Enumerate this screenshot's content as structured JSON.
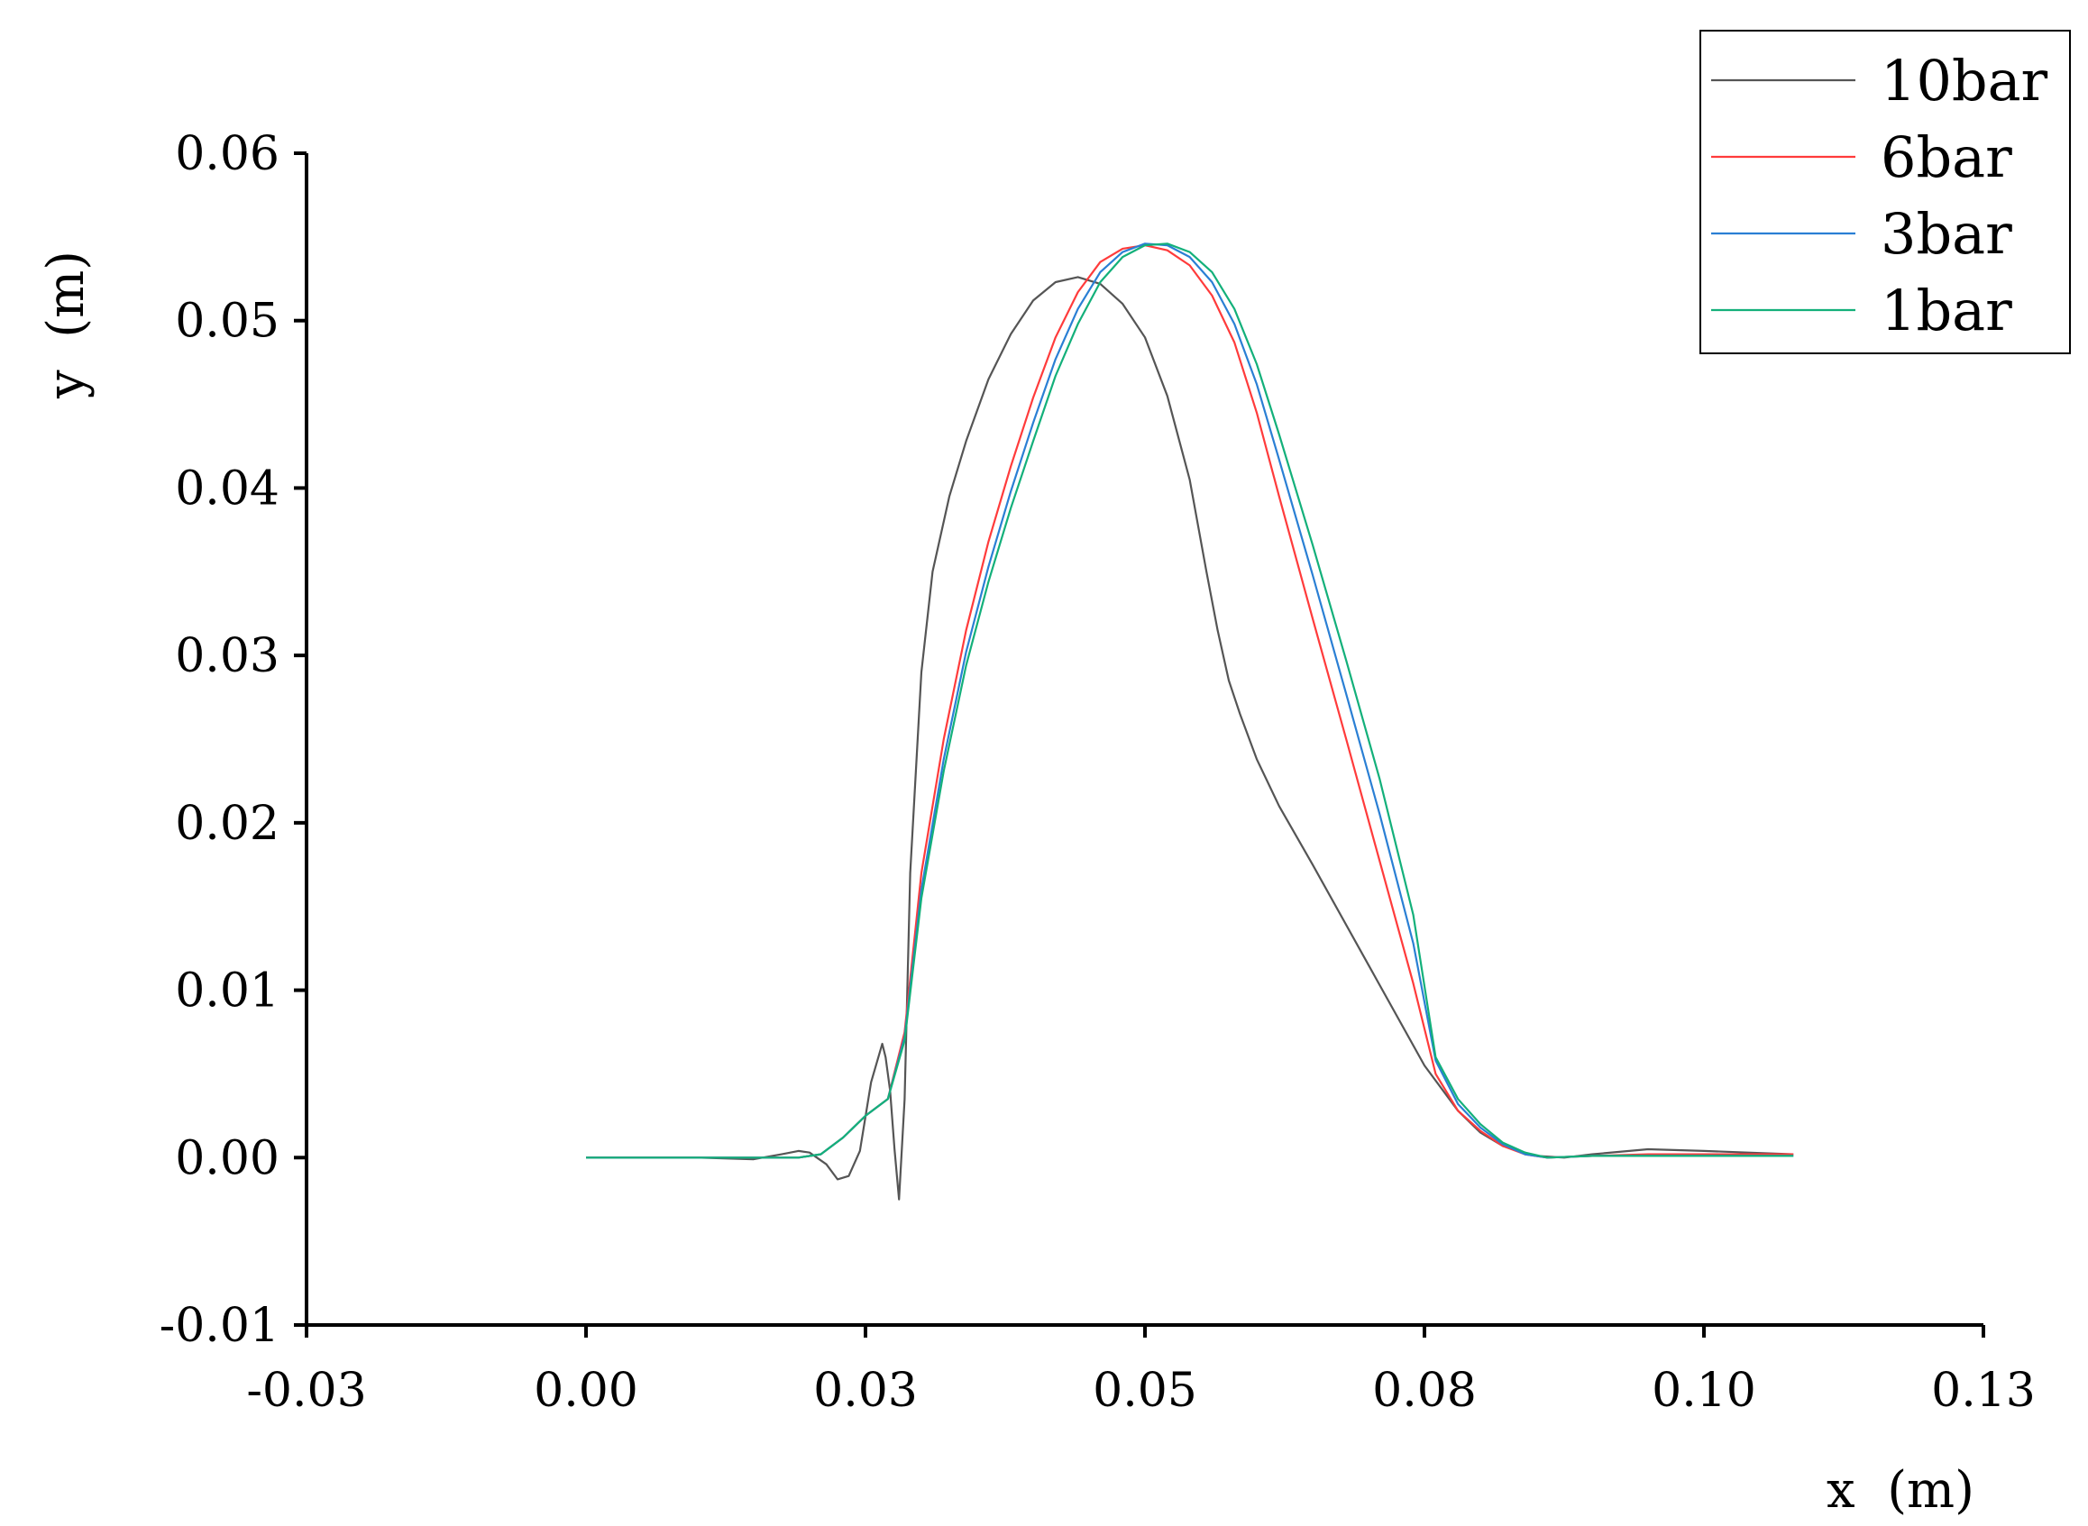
{
  "chart_data": {
    "type": "line",
    "xlabel": "x  (m)",
    "ylabel": "y  (m)",
    "xlim": [
      -0.025,
      0.125
    ],
    "ylim": [
      -0.01,
      0.06
    ],
    "x_ticks": [
      -0.025,
      0.0,
      0.025,
      0.05,
      0.075,
      0.1,
      0.125
    ],
    "x_tick_labels": [
      "-0.03",
      "0.00",
      "0.03",
      "0.05",
      "0.08",
      "0.10",
      "0.13"
    ],
    "y_ticks": [
      -0.01,
      0.0,
      0.01,
      0.02,
      0.03,
      0.04,
      0.05,
      0.06
    ],
    "y_tick_labels": [
      "-0.01",
      "0.00",
      "0.01",
      "0.02",
      "0.03",
      "0.04",
      "0.05",
      "0.06"
    ],
    "grid": false,
    "legend_position": "top-right",
    "series": [
      {
        "name": "10bar",
        "color": "#555555",
        "x": [
          0.0,
          0.01,
          0.015,
          0.0175,
          0.019,
          0.02,
          0.0215,
          0.0225,
          0.0235,
          0.0245,
          0.0255,
          0.0265,
          0.0268,
          0.0272,
          0.0276,
          0.028,
          0.0285,
          0.029,
          0.03,
          0.031,
          0.0325,
          0.034,
          0.036,
          0.038,
          0.04,
          0.042,
          0.044,
          0.046,
          0.048,
          0.05,
          0.052,
          0.054,
          0.0555,
          0.0565,
          0.057,
          0.0575,
          0.0585,
          0.06,
          0.062,
          0.065,
          0.07,
          0.075,
          0.078,
          0.08,
          0.082,
          0.085,
          0.0875,
          0.09,
          0.095,
          0.1,
          0.108
        ],
        "y": [
          0.0,
          0.0,
          -0.0001,
          0.0002,
          0.0004,
          0.0003,
          -0.0004,
          -0.0013,
          -0.0011,
          0.0004,
          0.0045,
          0.0068,
          0.006,
          0.004,
          0.0005,
          -0.0025,
          0.0035,
          0.017,
          0.029,
          0.035,
          0.0395,
          0.0428,
          0.0465,
          0.0492,
          0.0512,
          0.0523,
          0.0526,
          0.0522,
          0.051,
          0.049,
          0.0455,
          0.0405,
          0.035,
          0.0315,
          0.03,
          0.0285,
          0.0265,
          0.0238,
          0.021,
          0.0175,
          0.0115,
          0.0055,
          0.0028,
          0.0015,
          0.0007,
          0.0001,
          0.0,
          0.0002,
          0.0005,
          0.0004,
          0.0002
        ]
      },
      {
        "name": "6bar",
        "color": "#ff3b3b",
        "x": [
          0.0,
          0.015,
          0.019,
          0.021,
          0.023,
          0.025,
          0.027,
          0.0285,
          0.03,
          0.032,
          0.034,
          0.036,
          0.038,
          0.04,
          0.042,
          0.044,
          0.046,
          0.048,
          0.05,
          0.052,
          0.054,
          0.056,
          0.058,
          0.06,
          0.062,
          0.065,
          0.068,
          0.071,
          0.074,
          0.076,
          0.078,
          0.08,
          0.082,
          0.084,
          0.086,
          0.09,
          0.095,
          0.1,
          0.108
        ],
        "y": [
          0.0,
          0.0,
          0.0,
          0.0002,
          0.0012,
          0.0025,
          0.0035,
          0.0075,
          0.017,
          0.025,
          0.0315,
          0.0368,
          0.0413,
          0.0454,
          0.049,
          0.0517,
          0.0535,
          0.0543,
          0.0545,
          0.0542,
          0.0533,
          0.0515,
          0.0487,
          0.0445,
          0.0395,
          0.0322,
          0.025,
          0.0177,
          0.0104,
          0.005,
          0.0028,
          0.0016,
          0.0007,
          0.0002,
          0.0,
          0.0001,
          0.0002,
          0.0002,
          0.0002
        ]
      },
      {
        "name": "3bar",
        "color": "#2a7fd4",
        "x": [
          0.0,
          0.015,
          0.019,
          0.021,
          0.023,
          0.025,
          0.027,
          0.0285,
          0.03,
          0.032,
          0.034,
          0.036,
          0.038,
          0.04,
          0.042,
          0.044,
          0.046,
          0.048,
          0.05,
          0.052,
          0.054,
          0.056,
          0.058,
          0.06,
          0.062,
          0.065,
          0.068,
          0.071,
          0.074,
          0.076,
          0.078,
          0.08,
          0.082,
          0.084,
          0.086,
          0.09,
          0.095,
          0.1,
          0.108
        ],
        "y": [
          0.0,
          0.0,
          0.0,
          0.0002,
          0.0012,
          0.0025,
          0.0035,
          0.0072,
          0.016,
          0.0238,
          0.0302,
          0.0353,
          0.0398,
          0.0439,
          0.0477,
          0.0507,
          0.0529,
          0.0541,
          0.0546,
          0.0545,
          0.0538,
          0.0523,
          0.0498,
          0.0462,
          0.0417,
          0.0348,
          0.0277,
          0.0205,
          0.0128,
          0.0058,
          0.0032,
          0.0018,
          0.0008,
          0.0002,
          0.0,
          0.0001,
          0.0001,
          0.0001,
          0.0001
        ]
      },
      {
        "name": "1bar",
        "color": "#13b07a",
        "x": [
          0.0,
          0.015,
          0.019,
          0.021,
          0.023,
          0.025,
          0.027,
          0.0285,
          0.03,
          0.032,
          0.034,
          0.036,
          0.038,
          0.04,
          0.042,
          0.044,
          0.046,
          0.048,
          0.05,
          0.052,
          0.054,
          0.056,
          0.058,
          0.06,
          0.062,
          0.065,
          0.068,
          0.071,
          0.074,
          0.076,
          0.078,
          0.08,
          0.082,
          0.084,
          0.086,
          0.09,
          0.095,
          0.1,
          0.108
        ],
        "y": [
          0.0,
          0.0,
          0.0,
          0.0002,
          0.0012,
          0.0025,
          0.0035,
          0.007,
          0.0155,
          0.0231,
          0.0294,
          0.0344,
          0.0388,
          0.0428,
          0.0467,
          0.0498,
          0.0523,
          0.0538,
          0.0545,
          0.0546,
          0.0541,
          0.0529,
          0.0507,
          0.0474,
          0.0432,
          0.0366,
          0.0297,
          0.0226,
          0.0145,
          0.006,
          0.0035,
          0.002,
          0.0009,
          0.0003,
          0.0,
          0.0001,
          0.0001,
          0.0001,
          0.0001
        ]
      }
    ]
  }
}
